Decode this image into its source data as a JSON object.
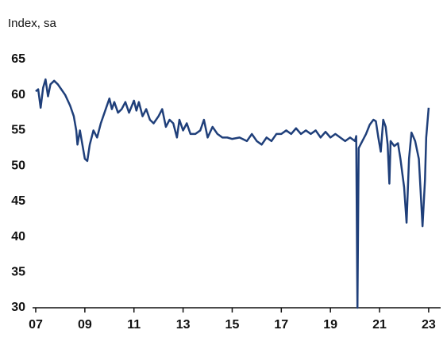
{
  "chart_data": {
    "type": "line",
    "title": "Index, sa",
    "x": [
      2007.0,
      2007.1,
      2007.2,
      2007.3,
      2007.4,
      2007.5,
      2007.6,
      2007.75,
      2007.9,
      2008.0,
      2008.2,
      2008.4,
      2008.55,
      2008.65,
      2008.7,
      2008.8,
      2008.9,
      2009.0,
      2009.1,
      2009.2,
      2009.35,
      2009.5,
      2009.65,
      2009.8,
      2010.0,
      2010.1,
      2010.2,
      2010.35,
      2010.5,
      2010.65,
      2010.8,
      2011.0,
      2011.1,
      2011.2,
      2011.35,
      2011.5,
      2011.65,
      2011.8,
      2012.0,
      2012.15,
      2012.3,
      2012.45,
      2012.6,
      2012.75,
      2012.85,
      2013.0,
      2013.15,
      2013.3,
      2013.5,
      2013.7,
      2013.85,
      2014.0,
      2014.2,
      2014.4,
      2014.6,
      2014.8,
      2015.0,
      2015.3,
      2015.6,
      2015.8,
      2016.0,
      2016.2,
      2016.4,
      2016.6,
      2016.8,
      2017.0,
      2017.2,
      2017.4,
      2017.6,
      2017.8,
      2018.0,
      2018.2,
      2018.4,
      2018.6,
      2018.8,
      2019.0,
      2019.2,
      2019.4,
      2019.6,
      2019.8,
      2020.0,
      2020.05,
      2020.1,
      2020.15,
      2020.3,
      2020.45,
      2020.6,
      2020.75,
      2020.85,
      2020.95,
      2021.05,
      2021.15,
      2021.25,
      2021.33,
      2021.4,
      2021.45,
      2021.6,
      2021.75,
      2021.85,
      2022.0,
      2022.1,
      2022.2,
      2022.3,
      2022.45,
      2022.6,
      2022.75,
      2022.85,
      2022.9,
      2023.0
    ],
    "values": [
      60.5,
      60.8,
      58.2,
      61,
      62.2,
      59.8,
      61.5,
      62,
      61.5,
      61,
      60,
      58.5,
      57,
      55,
      53,
      55,
      53,
      51,
      50.7,
      53,
      55,
      54,
      56,
      57.5,
      59.5,
      58,
      59,
      57.5,
      58,
      59,
      57.5,
      59.2,
      57.8,
      59,
      57,
      58,
      56.5,
      56,
      57,
      58,
      55.5,
      56.5,
      56,
      54,
      56.5,
      55,
      56,
      54.5,
      54.5,
      55,
      56.5,
      54,
      55.5,
      54.5,
      54,
      54,
      53.8,
      54,
      53.5,
      54.5,
      53.5,
      53,
      54,
      53.5,
      54.5,
      54.5,
      55,
      54.5,
      55.3,
      54.5,
      55,
      54.5,
      55,
      54,
      54.8,
      54,
      54.5,
      54,
      53.5,
      54,
      53.5,
      54.2,
      30,
      52.5,
      53.5,
      54.5,
      55.8,
      56.5,
      56.3,
      54,
      52,
      56.5,
      55.5,
      53,
      47.5,
      53.5,
      52.8,
      53.2,
      51,
      47,
      42,
      51,
      54.7,
      53.5,
      51,
      41.5,
      48,
      54,
      58.2
    ],
    "color": "#1f3f7a",
    "xlim": [
      2007,
      2023.1
    ],
    "xticks": [
      {
        "value": 2007,
        "label": "07"
      },
      {
        "value": 2009,
        "label": "09"
      },
      {
        "value": 2011,
        "label": "11"
      },
      {
        "value": 2013,
        "label": "13"
      },
      {
        "value": 2015,
        "label": "15"
      },
      {
        "value": 2017,
        "label": "17"
      },
      {
        "value": 2019,
        "label": "19"
      },
      {
        "value": 2021,
        "label": "21"
      },
      {
        "value": 2023,
        "label": "23"
      }
    ],
    "ylim": [
      30,
      65
    ],
    "yticks": [
      30,
      35,
      40,
      45,
      50,
      55,
      60,
      65
    ]
  }
}
